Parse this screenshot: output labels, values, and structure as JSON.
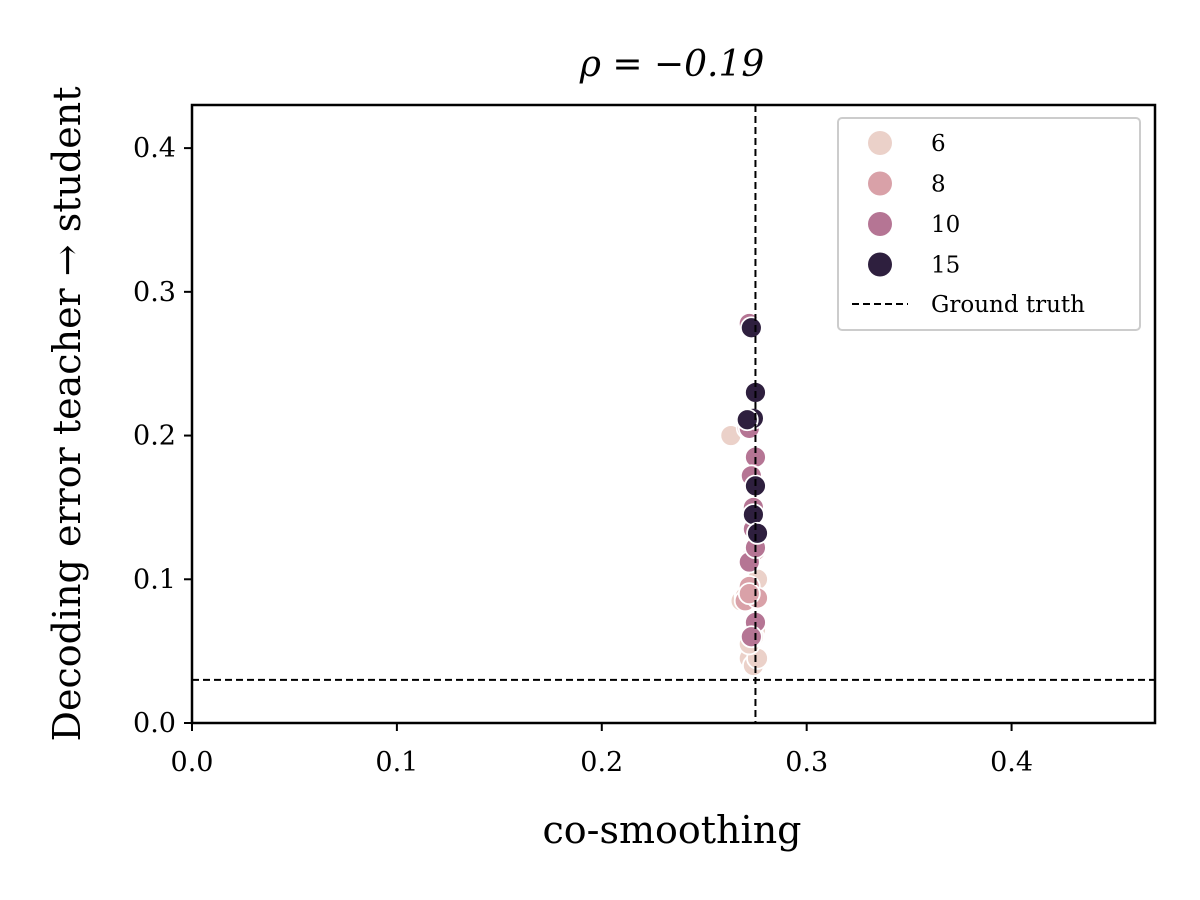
{
  "chart_data": {
    "type": "scatter",
    "title": "ρ = −0.19",
    "xlabel": "co-smoothing",
    "ylabel": "Decoding error teacher → student",
    "xlim": [
      0.0,
      0.47
    ],
    "ylim": [
      0.0,
      0.43
    ],
    "xticks": [
      0.0,
      0.1,
      0.2,
      0.3,
      0.4
    ],
    "yticks": [
      0.0,
      0.1,
      0.2,
      0.3,
      0.4
    ],
    "xtick_labels": [
      "0.0",
      "0.1",
      "0.2",
      "0.3",
      "0.4"
    ],
    "ytick_labels": [
      "0.0",
      "0.1",
      "0.2",
      "0.3",
      "0.4"
    ],
    "grid": false,
    "legend_position": "top-right",
    "ground_truth": {
      "label": "Ground truth",
      "x": 0.275,
      "y": 0.03
    },
    "series": [
      {
        "name": "6",
        "color": "#ebd1c9",
        "points": [
          [
            0.263,
            0.2
          ],
          [
            0.268,
            0.085
          ],
          [
            0.272,
            0.045
          ],
          [
            0.274,
            0.04
          ],
          [
            0.276,
            0.045
          ],
          [
            0.272,
            0.055
          ],
          [
            0.275,
            0.065
          ],
          [
            0.27,
            0.088
          ],
          [
            0.276,
            0.1
          ],
          [
            0.272,
            0.21
          ],
          [
            0.274,
            0.06
          ]
        ]
      },
      {
        "name": "8",
        "color": "#d9a1a8",
        "points": [
          [
            0.27,
            0.085
          ],
          [
            0.272,
            0.095
          ],
          [
            0.276,
            0.087
          ],
          [
            0.273,
            0.115
          ],
          [
            0.275,
            0.12
          ],
          [
            0.271,
            0.205
          ],
          [
            0.274,
            0.15
          ],
          [
            0.272,
            0.09
          ]
        ]
      },
      {
        "name": "10",
        "color": "#b57594",
        "points": [
          [
            0.272,
            0.278
          ],
          [
            0.275,
            0.185
          ],
          [
            0.273,
            0.172
          ],
          [
            0.274,
            0.15
          ],
          [
            0.272,
            0.112
          ],
          [
            0.275,
            0.122
          ],
          [
            0.275,
            0.07
          ],
          [
            0.273,
            0.06
          ],
          [
            0.272,
            0.205
          ],
          [
            0.274,
            0.135
          ]
        ]
      },
      {
        "name": "15",
        "color": "#2e1f3e",
        "points": [
          [
            0.273,
            0.275
          ],
          [
            0.275,
            0.23
          ],
          [
            0.274,
            0.212
          ],
          [
            0.271,
            0.211
          ],
          [
            0.275,
            0.165
          ],
          [
            0.274,
            0.145
          ],
          [
            0.276,
            0.132
          ]
        ]
      }
    ]
  }
}
